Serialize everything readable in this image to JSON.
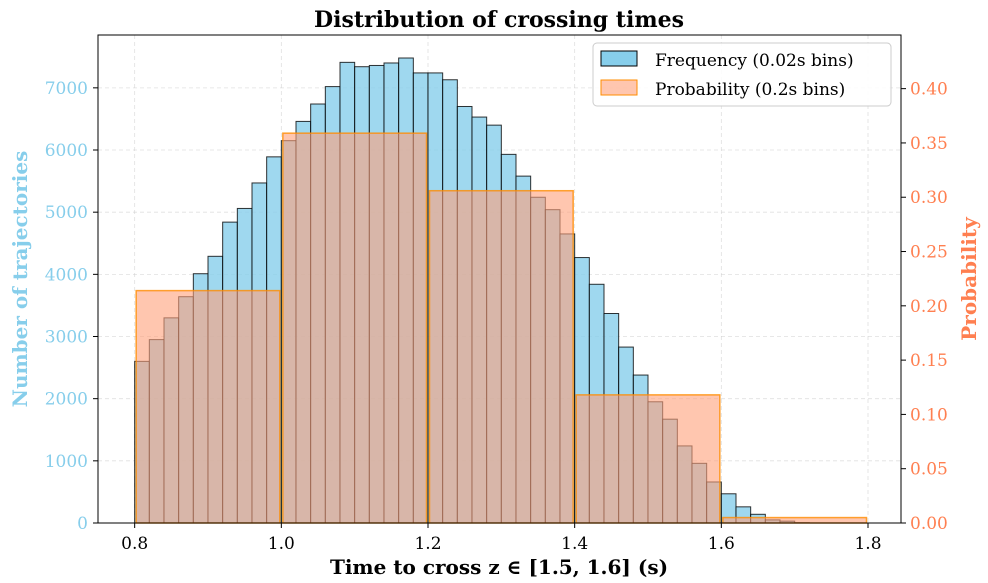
{
  "chart_data": {
    "type": "bar",
    "title": "Distribution of crossing times",
    "xlabel": "Time to cross z ∈ [1.5, 1.6] (s)",
    "ylabel_left": "Number of trajectories",
    "ylabel_right": "Probability",
    "xlim": [
      0.75,
      1.845
    ],
    "ylim_left": [
      0,
      7850
    ],
    "ylim_right": [
      0,
      0.4494
    ],
    "x_ticks": [
      0.8,
      1.0,
      1.2,
      1.4,
      1.6,
      1.8
    ],
    "x_tick_labels": [
      "0.8",
      "1.0",
      "1.2",
      "1.4",
      "1.6",
      "1.8"
    ],
    "y_left_ticks": [
      0,
      1000,
      2000,
      3000,
      4000,
      5000,
      6000,
      7000
    ],
    "y_left_tick_labels": [
      "0",
      "1000",
      "2000",
      "3000",
      "4000",
      "5000",
      "6000",
      "7000"
    ],
    "y_right_ticks": [
      0.0,
      0.05,
      0.1,
      0.15,
      0.2,
      0.25,
      0.3,
      0.35,
      0.4
    ],
    "y_right_tick_labels": [
      "0.00",
      "0.05",
      "0.10",
      "0.15",
      "0.20",
      "0.25",
      "0.30",
      "0.35",
      "0.40"
    ],
    "grid": true,
    "legend_position": "top-right",
    "colors": {
      "frequency_fill": "#87ceeb",
      "frequency_edge": "#000000",
      "probability_fill": "#ffa07a",
      "probability_edge": "#ff8c00",
      "left_axis_color": "#87ceeb",
      "right_axis_color": "#ff7f50",
      "grid_color": "#cccccc"
    },
    "series": [
      {
        "name": "Frequency (0.02s bins)",
        "axis": "left",
        "bin_width": 0.02,
        "bin_starts": [
          0.8,
          0.82,
          0.84,
          0.86,
          0.88,
          0.9,
          0.92,
          0.94,
          0.96,
          0.98,
          1.0,
          1.02,
          1.04,
          1.06,
          1.08,
          1.1,
          1.12,
          1.14,
          1.16,
          1.18,
          1.2,
          1.22,
          1.24,
          1.26,
          1.28,
          1.3,
          1.32,
          1.34,
          1.36,
          1.38,
          1.4,
          1.42,
          1.44,
          1.46,
          1.48,
          1.5,
          1.52,
          1.54,
          1.56,
          1.58,
          1.6,
          1.62,
          1.64,
          1.66,
          1.68,
          1.7
        ],
        "values": [
          2600,
          2950,
          3300,
          3640,
          4010,
          4290,
          4840,
          5060,
          5470,
          5890,
          6150,
          6460,
          6740,
          7020,
          7410,
          7340,
          7360,
          7400,
          7480,
          7240,
          7240,
          7130,
          6700,
          6530,
          6400,
          5930,
          5580,
          5240,
          5040,
          4650,
          4270,
          3840,
          3370,
          2830,
          2380,
          1950,
          1670,
          1240,
          960,
          660,
          470,
          260,
          140,
          50,
          30,
          5
        ]
      },
      {
        "name": "Probability (0.2s bins)",
        "axis": "right",
        "bin_width": 0.2,
        "bin_starts": [
          0.8,
          1.0,
          1.2,
          1.4,
          1.6
        ],
        "values": [
          0.214,
          0.359,
          0.306,
          0.118,
          0.005
        ]
      }
    ]
  }
}
